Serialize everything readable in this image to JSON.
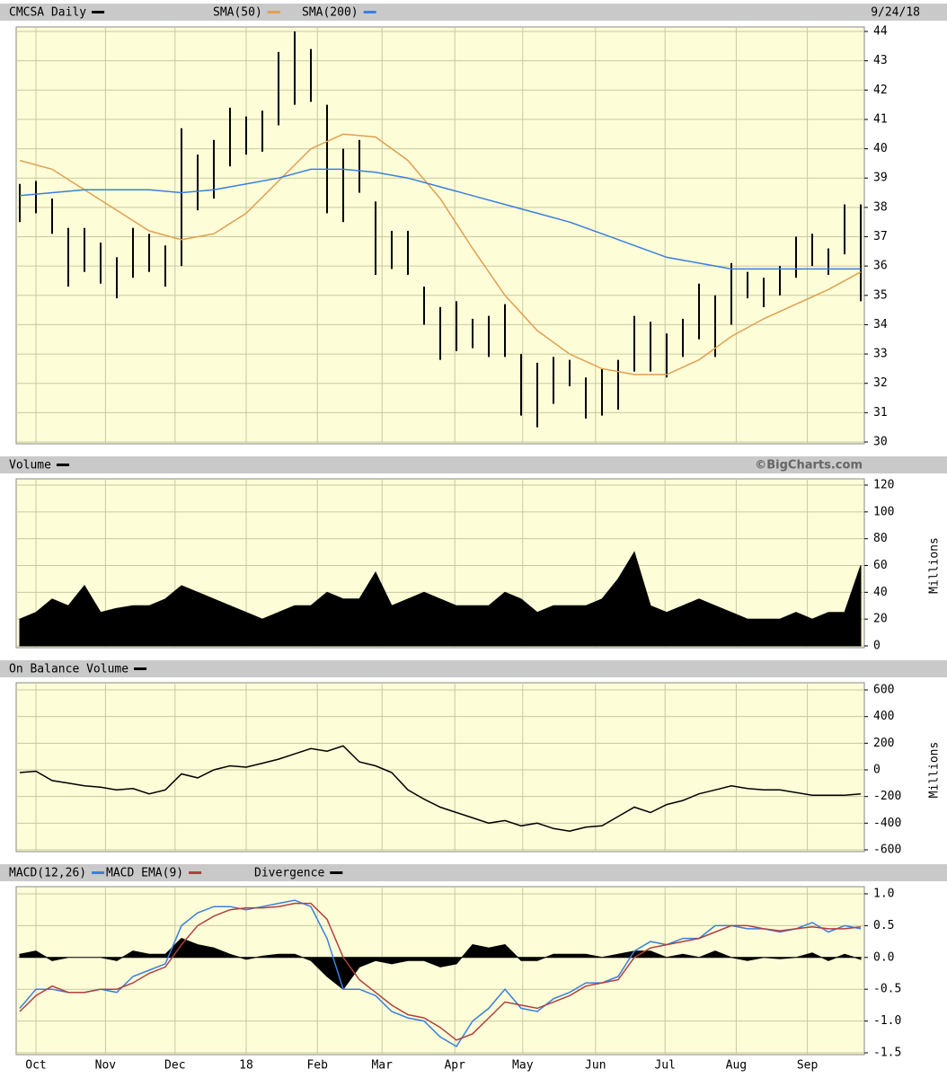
{
  "chart_data": {
    "type": "stock",
    "x": [
      0,
      1,
      2,
      3,
      4,
      5,
      6,
      7,
      8,
      9,
      10,
      11,
      12,
      13,
      14,
      15,
      16,
      17,
      18,
      19,
      20,
      21,
      22,
      23,
      24,
      25,
      26,
      27,
      28,
      29,
      30,
      31,
      32,
      33,
      34,
      35,
      36,
      37,
      38,
      39,
      40,
      41,
      42,
      43,
      44,
      45,
      46,
      47,
      48,
      49,
      50,
      51,
      52
    ],
    "xlim": [
      0,
      52
    ],
    "xticks": [
      {
        "value": 1,
        "label": "Oct"
      },
      {
        "value": 5.3,
        "label": "Nov"
      },
      {
        "value": 9.6,
        "label": "Dec"
      },
      {
        "value": 14,
        "label": "18"
      },
      {
        "value": 18.4,
        "label": "Feb"
      },
      {
        "value": 22.4,
        "label": "Mar"
      },
      {
        "value": 26.9,
        "label": "Apr"
      },
      {
        "value": 31.1,
        "label": "May"
      },
      {
        "value": 35.6,
        "label": "Jun"
      },
      {
        "value": 39.9,
        "label": "Jul"
      },
      {
        "value": 44.3,
        "label": "Aug"
      },
      {
        "value": 48.7,
        "label": "Sep"
      }
    ],
    "grid": true,
    "panels": [
      {
        "type": "ohlc",
        "date": "9/24/18",
        "ylim": [
          30,
          44
        ],
        "yticks": [
          30,
          31,
          32,
          33,
          34,
          35,
          36,
          37,
          38,
          39,
          40,
          41,
          42,
          43,
          44
        ],
        "series": [
          {
            "name": "CMCSA Daily",
            "type": "ohlc",
            "color": "#000000",
            "high": [
              38.8,
              38.9,
              38.3,
              37.3,
              37.3,
              36.8,
              36.3,
              37.3,
              37.1,
              36.7,
              40.7,
              39.8,
              40.3,
              41.4,
              41.1,
              41.3,
              43.3,
              44.0,
              43.4,
              41.5,
              40.0,
              40.3,
              38.2,
              37.2,
              37.2,
              35.3,
              34.6,
              34.8,
              34.2,
              34.3,
              34.7,
              33.0,
              32.7,
              32.9,
              32.8,
              32.2,
              32.5,
              32.8,
              34.3,
              34.1,
              33.7,
              34.2,
              35.4,
              35.0,
              36.1,
              35.8,
              35.6,
              36.0,
              37.0,
              37.1,
              36.6,
              38.1,
              38.1
            ],
            "low": [
              37.5,
              37.8,
              37.1,
              35.3,
              35.8,
              35.4,
              34.9,
              35.6,
              35.8,
              35.3,
              36.0,
              37.9,
              38.3,
              39.4,
              39.8,
              39.9,
              40.8,
              41.5,
              41.6,
              37.8,
              37.5,
              38.5,
              35.7,
              35.9,
              35.7,
              34.0,
              32.8,
              33.1,
              33.2,
              32.9,
              32.9,
              30.9,
              30.5,
              31.3,
              31.9,
              30.8,
              30.9,
              31.1,
              32.4,
              32.4,
              32.2,
              32.9,
              33.5,
              32.9,
              34.0,
              34.9,
              34.6,
              35.0,
              35.6,
              36.0,
              35.7,
              36.4,
              34.8
            ]
          },
          {
            "name": "SMA(50)",
            "type": "line",
            "color": "#e0a050",
            "x": [
              0,
              2,
              4,
              6,
              8,
              10,
              12,
              14,
              16,
              18,
              20,
              22,
              24,
              26,
              28,
              30,
              32,
              34,
              36,
              38,
              40,
              42,
              44,
              46,
              48,
              50,
              52
            ],
            "values": [
              39.6,
              39.3,
              38.6,
              37.9,
              37.2,
              36.9,
              37.1,
              37.8,
              38.9,
              40.0,
              40.5,
              40.4,
              39.6,
              38.3,
              36.6,
              35.0,
              33.8,
              33.0,
              32.5,
              32.3,
              32.3,
              32.8,
              33.6,
              34.2,
              34.7,
              35.2,
              35.8
            ]
          },
          {
            "name": "SMA(200)",
            "type": "line",
            "color": "#3a7fe0",
            "x": [
              0,
              2,
              4,
              6,
              8,
              10,
              12,
              14,
              16,
              18,
              20,
              22,
              24,
              26,
              28,
              30,
              32,
              34,
              36,
              38,
              40,
              42,
              44,
              46,
              48,
              50,
              52
            ],
            "values": [
              38.4,
              38.5,
              38.6,
              38.6,
              38.6,
              38.5,
              38.6,
              38.8,
              39.0,
              39.3,
              39.3,
              39.2,
              39.0,
              38.7,
              38.4,
              38.1,
              37.8,
              37.5,
              37.1,
              36.7,
              36.3,
              36.1,
              35.9,
              35.9,
              35.9,
              35.9,
              35.9
            ]
          }
        ]
      },
      {
        "type": "area",
        "credit": "©BigCharts.com",
        "ylabel": "Millions",
        "ylim": [
          0,
          120
        ],
        "yticks": [
          0,
          20,
          40,
          60,
          80,
          100,
          120
        ],
        "series": [
          {
            "name": "Volume",
            "type": "area",
            "color": "#000000",
            "values": [
              20,
              25,
              35,
              30,
              45,
              25,
              28,
              30,
              30,
              35,
              45,
              40,
              35,
              30,
              25,
              20,
              25,
              30,
              30,
              40,
              35,
              35,
              55,
              30,
              35,
              40,
              35,
              30,
              30,
              30,
              40,
              35,
              25,
              30,
              30,
              30,
              35,
              50,
              70,
              30,
              25,
              30,
              35,
              30,
              25,
              20,
              20,
              20,
              25,
              20,
              25,
              25,
              60
            ]
          }
        ]
      },
      {
        "type": "line",
        "ylabel": "Millions",
        "ylim": [
          -600,
          600
        ],
        "yticks": [
          -600,
          -400,
          -200,
          0,
          200,
          400,
          600
        ],
        "series": [
          {
            "name": "On Balance Volume",
            "type": "line",
            "color": "#000000",
            "values": [
              -20,
              -10,
              -80,
              -100,
              -120,
              -130,
              -150,
              -140,
              -180,
              -150,
              -30,
              -60,
              0,
              30,
              20,
              50,
              80,
              120,
              160,
              140,
              180,
              60,
              30,
              -20,
              -150,
              -220,
              -280,
              -320,
              -360,
              -400,
              -380,
              -420,
              -400,
              -440,
              -460,
              -430,
              -420,
              -350,
              -280,
              -320,
              -260,
              -230,
              -180,
              -150,
              -120,
              -140,
              -150,
              -150,
              -170,
              -190,
              -190,
              -190,
              -180
            ]
          }
        ]
      },
      {
        "type": "line",
        "ylim": [
          -1.5,
          1.0
        ],
        "yticks": [
          -1.5,
          {
            "value": -1.0,
            "label": "-1.0"
          },
          -0.5,
          {
            "value": 0,
            "label": "0.0"
          },
          0.5,
          {
            "value": 1.0,
            "label": "1.0"
          }
        ],
        "series": [
          {
            "name": "MACD(12,26)",
            "type": "line",
            "color": "#3a7fe0",
            "values": [
              -0.8,
              -0.5,
              -0.5,
              -0.55,
              -0.55,
              -0.5,
              -0.55,
              -0.3,
              -0.2,
              -0.1,
              0.5,
              0.7,
              0.8,
              0.8,
              0.75,
              0.8,
              0.85,
              0.9,
              0.8,
              0.3,
              -0.5,
              -0.5,
              -0.6,
              -0.85,
              -0.95,
              -1.0,
              -1.25,
              -1.4,
              -1.0,
              -0.8,
              -0.5,
              -0.8,
              -0.85,
              -0.65,
              -0.55,
              -0.4,
              -0.4,
              -0.3,
              0.1,
              0.25,
              0.2,
              0.3,
              0.3,
              0.5,
              0.5,
              0.45,
              0.45,
              0.4,
              0.45,
              0.55,
              0.4,
              0.5,
              0.45
            ]
          },
          {
            "name": "MACD EMA(9)",
            "type": "line",
            "color": "#b04040",
            "values": [
              -0.85,
              -0.6,
              -0.45,
              -0.55,
              -0.55,
              -0.5,
              -0.5,
              -0.4,
              -0.25,
              -0.15,
              0.2,
              0.5,
              0.65,
              0.75,
              0.78,
              0.78,
              0.8,
              0.85,
              0.85,
              0.6,
              0.0,
              -0.35,
              -0.55,
              -0.75,
              -0.9,
              -0.95,
              -1.1,
              -1.3,
              -1.2,
              -0.95,
              -0.7,
              -0.75,
              -0.8,
              -0.7,
              -0.6,
              -0.45,
              -0.4,
              -0.35,
              0.0,
              0.15,
              0.2,
              0.25,
              0.3,
              0.4,
              0.5,
              0.5,
              0.45,
              0.42,
              0.45,
              0.48,
              0.45,
              0.45,
              0.48
            ]
          },
          {
            "name": "Divergence",
            "type": "area",
            "color": "#000000",
            "values": [
              0.05,
              0.1,
              -0.05,
              0,
              0,
              0,
              -0.05,
              0.1,
              0.05,
              0.05,
              0.3,
              0.2,
              0.15,
              0.05,
              -0.03,
              0.02,
              0.05,
              0.05,
              -0.05,
              -0.3,
              -0.5,
              -0.15,
              -0.05,
              -0.1,
              -0.05,
              -0.05,
              -0.15,
              -0.1,
              0.2,
              0.15,
              0.2,
              -0.05,
              -0.05,
              0.05,
              0.05,
              0.05,
              0,
              0.05,
              0.1,
              0.1,
              0,
              0.05,
              0,
              0.1,
              0,
              -0.05,
              0,
              -0.02,
              0,
              0.07,
              -0.05,
              0.05,
              -0.03
            ]
          }
        ]
      }
    ]
  }
}
